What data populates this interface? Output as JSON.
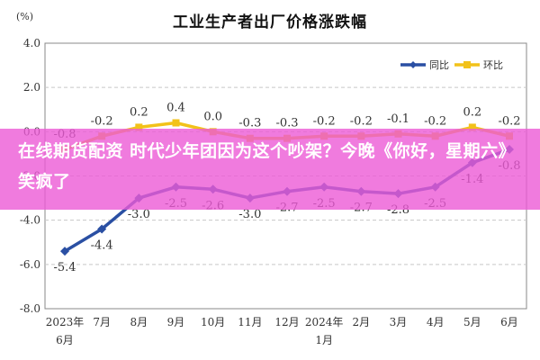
{
  "chart_data": {
    "type": "line",
    "title": "工业生产者出厂价格涨跌幅",
    "unit": "(%)",
    "categories": [
      "2023年6月",
      "7月",
      "8月",
      "9月",
      "10月",
      "11月",
      "12月",
      "2024年1月",
      "2月",
      "3月",
      "4月",
      "5月",
      "6月"
    ],
    "y_ticks": [
      "4.0",
      "2.0",
      "0.0",
      "-2.0",
      "-4.0",
      "-6.0",
      "-8.0"
    ],
    "ylim": [
      -8,
      4
    ],
    "grid": "horizontal dashed",
    "legend": "top-right",
    "series": [
      {
        "name": "同比",
        "color": "#2a4fa3",
        "values": [
          -5.4,
          -4.4,
          -3.0,
          -2.5,
          -2.6,
          -3.0,
          -2.7,
          -2.5,
          -2.7,
          -2.8,
          -2.5,
          -1.4,
          -0.8
        ],
        "labels": [
          "-5.4",
          "-4.4",
          "-3.0",
          "-2.5",
          "-2.6",
          "-3.0",
          "-2.7",
          "-2.5",
          "-2.7",
          "-2.8",
          "-2.5",
          "-1.4",
          "-0.8"
        ]
      },
      {
        "name": "环比",
        "color": "#f2c21a",
        "values": [
          -0.8,
          -0.2,
          0.2,
          0.4,
          0.0,
          -0.3,
          -0.3,
          -0.2,
          -0.2,
          -0.1,
          -0.2,
          0.2,
          -0.2
        ],
        "labels": [
          "-0.8",
          "-0.2",
          "0.2",
          "0.4",
          "0.0",
          "-0.3",
          "-0.3",
          "-0.2",
          "-0.2",
          "-0.1",
          "-0.2",
          "0.2",
          "-0.2"
        ]
      }
    ]
  },
  "overlay": {
    "text": "在线期货配资 时代少年团因为这个吵架？今晚《你好，星期六》笑疯了"
  }
}
